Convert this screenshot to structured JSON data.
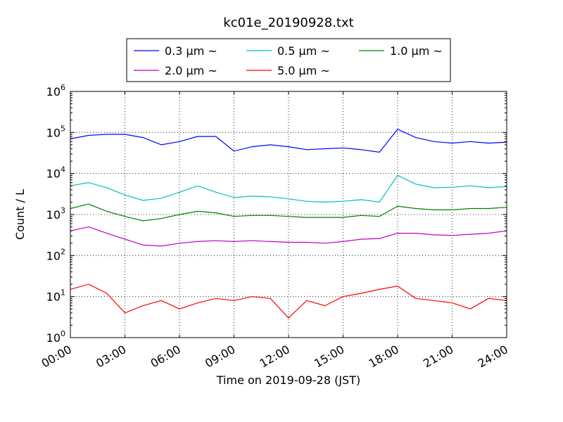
{
  "chart_data": {
    "type": "line",
    "title": "kc01e_20190928.txt",
    "xlabel": "Time on 2019-09-28 (JST)",
    "ylabel": "Count / L",
    "yscale": "log",
    "ylim": [
      1,
      1000000
    ],
    "xlim_hours": [
      0,
      24
    ],
    "grid": true,
    "legend_position": "top-center, outside plot",
    "x_ticks": [
      "00:00",
      "03:00",
      "06:00",
      "09:00",
      "12:00",
      "15:00",
      "18:00",
      "21:00",
      "24:00"
    ],
    "y_ticks": [
      {
        "base": "10",
        "exp": "0"
      },
      {
        "base": "10",
        "exp": "1"
      },
      {
        "base": "10",
        "exp": "2"
      },
      {
        "base": "10",
        "exp": "3"
      },
      {
        "base": "10",
        "exp": "4"
      },
      {
        "base": "10",
        "exp": "5"
      },
      {
        "base": "10",
        "exp": "6"
      }
    ],
    "x_hours": [
      0,
      1,
      2,
      3,
      4,
      5,
      6,
      7,
      8,
      9,
      10,
      11,
      12,
      13,
      14,
      15,
      16,
      17,
      18,
      19,
      20,
      21,
      22,
      23,
      24
    ],
    "series": [
      {
        "name": "0.3 μm ~",
        "color": "#0000ff",
        "values": [
          70000,
          85000,
          90000,
          90000,
          75000,
          50000,
          60000,
          80000,
          80000,
          35000,
          45000,
          50000,
          45000,
          38000,
          40000,
          42000,
          38000,
          33000,
          120000,
          75000,
          60000,
          55000,
          60000,
          55000,
          58000
        ]
      },
      {
        "name": "0.5 μm ~",
        "color": "#00bfbf",
        "values": [
          5000,
          6000,
          4500,
          3000,
          2200,
          2500,
          3500,
          5000,
          3500,
          2600,
          2800,
          2700,
          2400,
          2100,
          2000,
          2100,
          2300,
          2000,
          9000,
          5500,
          4500,
          4600,
          5000,
          4500,
          4800
        ]
      },
      {
        "name": "1.0 μm ~",
        "color": "#008000",
        "values": [
          1400,
          1800,
          1200,
          900,
          700,
          800,
          1000,
          1200,
          1100,
          900,
          950,
          950,
          900,
          850,
          850,
          850,
          950,
          900,
          1600,
          1400,
          1300,
          1300,
          1400,
          1400,
          1500
        ]
      },
      {
        "name": "2.0 μm ~",
        "color": "#bf00bf",
        "values": [
          400,
          500,
          350,
          250,
          180,
          170,
          200,
          220,
          230,
          220,
          230,
          220,
          210,
          210,
          200,
          220,
          250,
          260,
          350,
          350,
          320,
          310,
          330,
          350,
          400
        ]
      },
      {
        "name": "5.0 μm ~",
        "color": "#ff0000",
        "values": [
          15,
          20,
          12,
          4,
          6,
          8,
          5,
          7,
          9,
          8,
          10,
          9,
          3,
          8,
          6,
          10,
          12,
          15,
          18,
          9,
          8,
          7,
          5,
          9,
          8
        ]
      }
    ]
  }
}
